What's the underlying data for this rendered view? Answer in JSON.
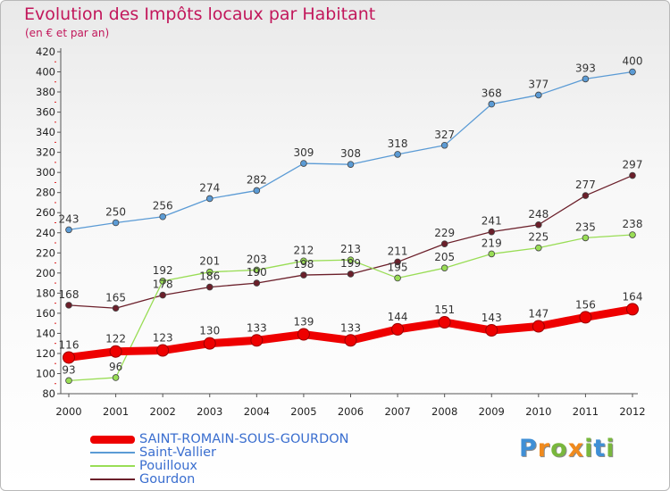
{
  "header": {
    "title": "Evolution des Impôts locaux par Habitant",
    "subtitle": "(en € et par an)"
  },
  "brand": {
    "text": "Proxiti"
  },
  "colors": {
    "title": "#c2175b",
    "axis": "#555555",
    "grid_dots": "#dd2222"
  },
  "chart_data": {
    "type": "line",
    "title": "Evolution des Impôts locaux par Habitant",
    "subtitle": "(en € et par an)",
    "xlabel": "",
    "ylabel": "",
    "x": [
      "2000",
      "2001",
      "2002",
      "2003",
      "2004",
      "2005",
      "2006",
      "2007",
      "2008",
      "2009",
      "2010",
      "2011",
      "2012"
    ],
    "ylim": [
      80,
      420
    ],
    "yticks": [
      80,
      100,
      120,
      140,
      160,
      180,
      200,
      220,
      240,
      260,
      280,
      300,
      320,
      340,
      360,
      380,
      400,
      420
    ],
    "legend_position": "bottom-left",
    "grid": false,
    "series": [
      {
        "name": "SAINT-ROMAIN-SOUS-GOURDON",
        "color": "#ee0000",
        "values": [
          116,
          122,
          123,
          130,
          133,
          139,
          133,
          144,
          151,
          143,
          147,
          156,
          164
        ],
        "emphasis": true
      },
      {
        "name": "Saint-Vallier",
        "color": "#5b9bd5",
        "values": [
          243,
          250,
          256,
          274,
          282,
          309,
          308,
          318,
          327,
          368,
          377,
          393,
          400
        ]
      },
      {
        "name": "Pouilloux",
        "color": "#99dd55",
        "values": [
          93,
          96,
          192,
          201,
          203,
          212,
          213,
          195,
          205,
          219,
          225,
          235,
          238
        ]
      },
      {
        "name": "Gourdon",
        "color": "#6b1f2a",
        "values": [
          168,
          165,
          178,
          186,
          190,
          198,
          199,
          211,
          229,
          241,
          248,
          277,
          297
        ]
      }
    ]
  }
}
